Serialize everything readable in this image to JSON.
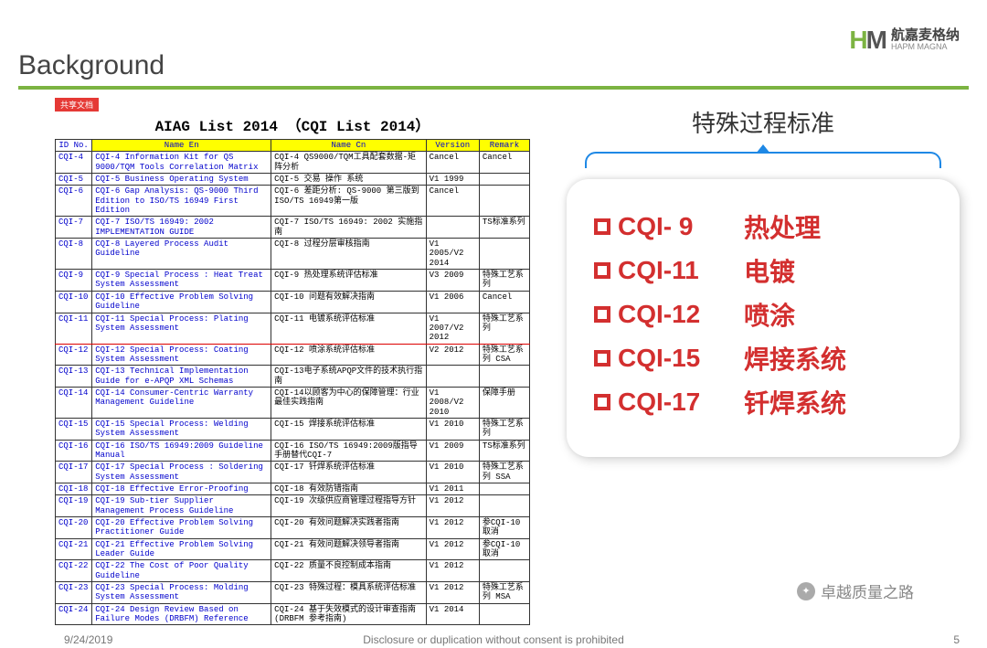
{
  "background_label": "Background",
  "logo": {
    "cn": "航嘉麦格纳",
    "en": "HAPM MAGNA"
  },
  "tag": "共享文档",
  "list_title": "AIAG List 2014 （CQI List 2014）",
  "headers": {
    "id": "ID No.",
    "nen": "Name En",
    "ncn": "Name Cn",
    "ver": "Version",
    "rem": "Remark"
  },
  "rows": [
    {
      "id": "CQI-4",
      "nen": "CQI-4 Information Kit for QS 9000/TQM Tools Correlation Matrix",
      "ncn": "CQI-4 QS9000/TQM工具配套数据-矩阵分析",
      "ver": "Cancel",
      "rem": "Cancel"
    },
    {
      "id": "CQI-5",
      "nen": "CQI-5 Business Operating System",
      "ncn": "CQI-5 交易 操作 系统",
      "ver": "V1 1999",
      "rem": ""
    },
    {
      "id": "CQI-6",
      "nen": "CQI-6 Gap Analysis: QS-9000 Third Edition to ISO/TS 16949 First Edition",
      "ncn": "CQI-6 差距分析: QS-9000 第三版到 ISO/TS 16949第一版",
      "ver": "Cancel",
      "rem": ""
    },
    {
      "id": "CQI-7",
      "nen": "CQI-7 ISO/TS 16949: 2002 IMPLEMENTATION GUIDE",
      "ncn": "CQI-7 ISO/TS 16949: 2002 实施指南",
      "ver": "",
      "rem": "TS标准系列"
    },
    {
      "id": "CQI-8",
      "nen": "CQI-8 Layered Process Audit Guideline",
      "ncn": "CQI-8 过程分层审核指南",
      "ver": "V1 2005/V2 2014",
      "rem": ""
    },
    {
      "id": "CQI-9",
      "nen": "CQI-9 Special Process : Heat Treat System Assessment",
      "ncn": "CQI-9 热处理系统评估标准",
      "ver": "V3 2009",
      "rem": "特殊工艺系列"
    },
    {
      "id": "CQI-10",
      "nen": "CQI-10 Effective Problem Solving Guideline",
      "ncn": "CQI-10 问题有效解决指南",
      "ver": "V1 2006",
      "rem": "Cancel"
    },
    {
      "id": "CQI-11",
      "nen": "CQI-11 Special Process: Plating System Assessment",
      "ncn": "CQI-11 电镀系统评估标准",
      "ver": "V1 2007/V2 2012",
      "rem": "特殊工艺系列",
      "redline": true
    },
    {
      "id": "CQI-12",
      "nen": "CQI-12 Special Process: Coating System Assessment",
      "ncn": "CQI-12 喷涂系统评估标准",
      "ver": "V2 2012",
      "rem": "特殊工艺系列 CSA"
    },
    {
      "id": "CQI-13",
      "nen": "CQI-13 Technical Implementation Guide for e-APQP XML Schemas",
      "ncn": "CQI-13电子系统APQP文件的技术执行指南",
      "ver": "",
      "rem": ""
    },
    {
      "id": "CQI-14",
      "nen": "CQI-14 Consumer-Centric Warranty Management Guideline",
      "ncn": "CQI-14以顾客为中心的保障管理：行业最佳实践指南",
      "ver": "V1 2008/V2 2010",
      "rem": "保障手册"
    },
    {
      "id": "CQI-15",
      "nen": "CQI-15 Special Process: Welding System Assessment",
      "ncn": "CQI-15 焊接系统评估标准",
      "ver": "V1 2010",
      "rem": "特殊工艺系列"
    },
    {
      "id": "CQI-16",
      "nen": "CQI-16 ISO/TS 16949:2009 Guideline Manual",
      "ncn": "CQI-16 ISO/TS 16949:2009版指导手册替代CQI-7",
      "ver": "V1 2009",
      "rem": "TS标准系列"
    },
    {
      "id": "CQI-17",
      "nen": "CQI-17 Special Process : Soldering System Assessment",
      "ncn": "CQI-17 钎焊系统评估标准",
      "ver": "V1 2010",
      "rem": "特殊工艺系列 SSA"
    },
    {
      "id": "CQI-18",
      "nen": "CQI-18 Effective Error-Proofing",
      "ncn": "CQI-18 有效防错指南",
      "ver": "V1 2011",
      "rem": ""
    },
    {
      "id": "CQI-19",
      "nen": "CQI-19 Sub-tier Supplier Management Process Guideline",
      "ncn": "CQI-19 次级供应商管理过程指导方针",
      "ver": "V1 2012",
      "rem": ""
    },
    {
      "id": "CQI-20",
      "nen": "CQI-20 Effective Problem Solving Practitioner Guide",
      "ncn": "CQI-20 有效问题解决实践者指南",
      "ver": "V1 2012",
      "rem": "参CQI-10取消"
    },
    {
      "id": "CQI-21",
      "nen": "CQI-21 Effective Problem Solving Leader Guide",
      "ncn": "CQI-21 有效问题解决领导者指南",
      "ver": "V1 2012",
      "rem": "参CQI-10取消"
    },
    {
      "id": "CQI-22",
      "nen": "CQI-22 The Cost of Poor Quality Guideline",
      "ncn": "CQI-22 质量不良控制成本指南",
      "ver": "V1 2012",
      "rem": ""
    },
    {
      "id": "CQI-23",
      "nen": "CQI-23 Special Process: Molding System Assessment",
      "ncn": "CQI-23 特殊过程：模具系统评估标准",
      "ver": "V1 2012",
      "rem": "特殊工艺系列 MSA"
    },
    {
      "id": "CQI-24",
      "nen": "CQI-24 Design Review Based on Failure Modes (DRBFM) Reference",
      "ncn": "CQI-24 基于失效模式的设计审查指南(DRBFM 参考指南)",
      "ver": "V1 2014",
      "rem": ""
    }
  ],
  "right_title": "特殊过程标准",
  "items": [
    {
      "code": "CQI- 9",
      "label": "热处理"
    },
    {
      "code": "CQI-11",
      "label": "电镀"
    },
    {
      "code": "CQI-12",
      "label": "喷涂"
    },
    {
      "code": "CQI-15",
      "label": "焊接系统"
    },
    {
      "code": "CQI-17",
      "label": "钎焊系统"
    }
  ],
  "footer": {
    "date": "9/24/2019",
    "disclaimer": "Disclosure or duplication without consent is prohibited",
    "page": "5"
  },
  "watermark": "卓越质量之路"
}
